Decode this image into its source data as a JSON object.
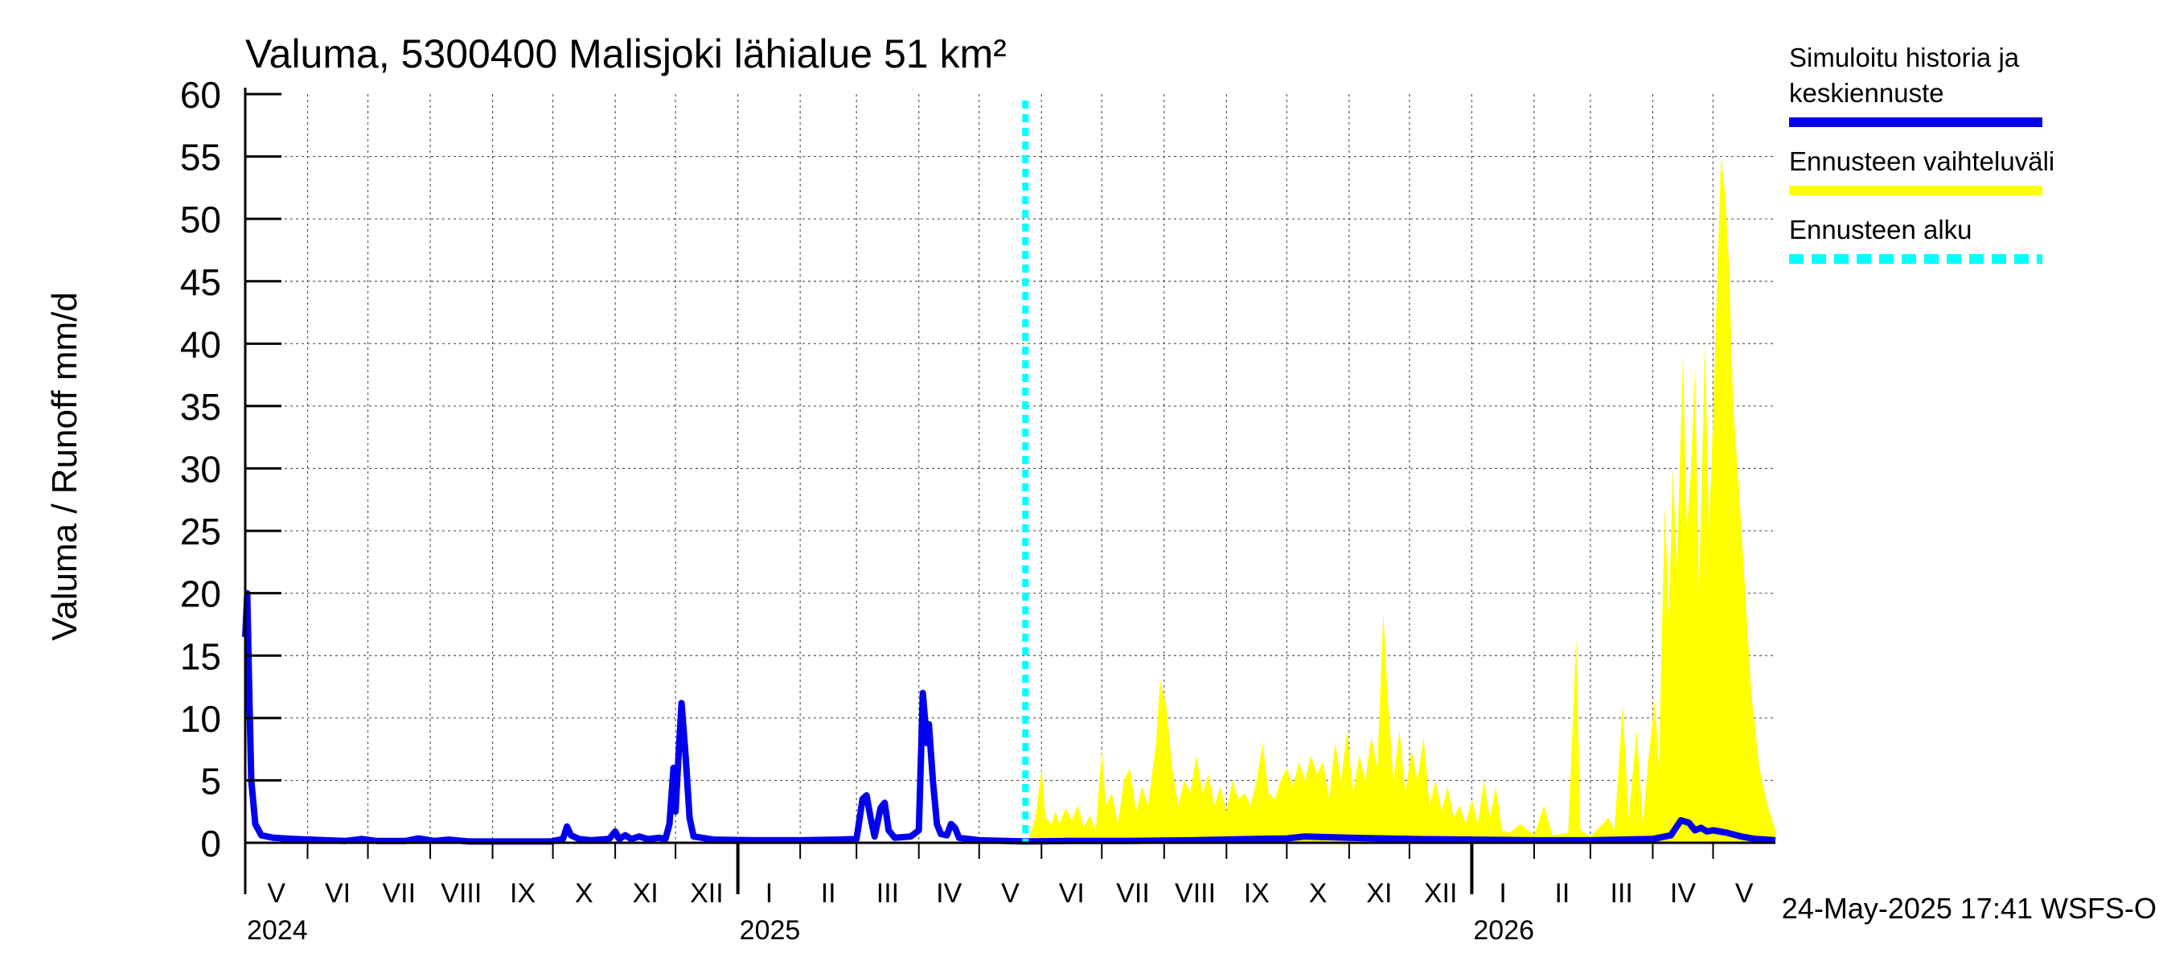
{
  "chart_data": {
    "type": "area",
    "title": "Valuma, 5300400 Malisjoki lähialue 51 km²",
    "ylabel": "Valuma / Runoff    mm/d",
    "ylim": [
      0,
      60
    ],
    "yticks": [
      0,
      5,
      10,
      15,
      20,
      25,
      30,
      35,
      40,
      45,
      50,
      55,
      60
    ],
    "xlim": [
      "2024-05-01",
      "2026-06-01"
    ],
    "grid": true,
    "month_labels": [
      {
        "label": "V",
        "start": "2024-05-01",
        "end": "2024-06-01"
      },
      {
        "label": "VI",
        "start": "2024-06-01",
        "end": "2024-07-01"
      },
      {
        "label": "VII",
        "start": "2024-07-01",
        "end": "2024-08-01"
      },
      {
        "label": "VIII",
        "start": "2024-08-01",
        "end": "2024-09-01"
      },
      {
        "label": "IX",
        "start": "2024-09-01",
        "end": "2024-10-01"
      },
      {
        "label": "X",
        "start": "2024-10-01",
        "end": "2024-11-01"
      },
      {
        "label": "XI",
        "start": "2024-11-01",
        "end": "2024-12-01"
      },
      {
        "label": "XII",
        "start": "2024-12-01",
        "end": "2025-01-01"
      },
      {
        "label": "I",
        "start": "2025-01-01",
        "end": "2025-02-01"
      },
      {
        "label": "II",
        "start": "2025-02-01",
        "end": "2025-03-01"
      },
      {
        "label": "III",
        "start": "2025-03-01",
        "end": "2025-04-01"
      },
      {
        "label": "IV",
        "start": "2025-04-01",
        "end": "2025-05-01"
      },
      {
        "label": "V",
        "start": "2025-05-01",
        "end": "2025-06-01"
      },
      {
        "label": "VI",
        "start": "2025-06-01",
        "end": "2025-07-01"
      },
      {
        "label": "VII",
        "start": "2025-07-01",
        "end": "2025-08-01"
      },
      {
        "label": "VIII",
        "start": "2025-08-01",
        "end": "2025-09-01"
      },
      {
        "label": "IX",
        "start": "2025-09-01",
        "end": "2025-10-01"
      },
      {
        "label": "X",
        "start": "2025-10-01",
        "end": "2025-11-01"
      },
      {
        "label": "XI",
        "start": "2025-11-01",
        "end": "2025-12-01"
      },
      {
        "label": "XII",
        "start": "2025-12-01",
        "end": "2026-01-01"
      },
      {
        "label": "I",
        "start": "2026-01-01",
        "end": "2026-02-01"
      },
      {
        "label": "II",
        "start": "2026-02-01",
        "end": "2026-03-01"
      },
      {
        "label": "III",
        "start": "2026-03-01",
        "end": "2026-04-01"
      },
      {
        "label": "IV",
        "start": "2026-04-01",
        "end": "2026-05-01"
      },
      {
        "label": "V",
        "start": "2026-05-01",
        "end": "2026-06-01"
      }
    ],
    "year_labels": [
      {
        "label": "2024",
        "date": "2024-05-01"
      },
      {
        "label": "2025",
        "date": "2025-01-01"
      },
      {
        "label": "2026",
        "date": "2026-01-01"
      }
    ],
    "forecast_start": "2025-05-24",
    "series": [
      {
        "name": "Simuloitu historia ja keskiennuste",
        "color": "#0000ee",
        "points": [
          [
            "2024-05-01",
            16.5
          ],
          [
            "2024-05-02",
            20.0
          ],
          [
            "2024-05-03",
            12.0
          ],
          [
            "2024-05-04",
            5.0
          ],
          [
            "2024-05-06",
            1.5
          ],
          [
            "2024-05-09",
            0.6
          ],
          [
            "2024-05-15",
            0.4
          ],
          [
            "2024-05-25",
            0.3
          ],
          [
            "2024-06-10",
            0.2
          ],
          [
            "2024-06-20",
            0.15
          ],
          [
            "2024-06-28",
            0.3
          ],
          [
            "2024-07-05",
            0.15
          ],
          [
            "2024-07-20",
            0.15
          ],
          [
            "2024-07-26",
            0.35
          ],
          [
            "2024-08-03",
            0.15
          ],
          [
            "2024-08-10",
            0.25
          ],
          [
            "2024-08-20",
            0.1
          ],
          [
            "2024-09-15",
            0.1
          ],
          [
            "2024-09-30",
            0.1
          ],
          [
            "2024-10-06",
            0.3
          ],
          [
            "2024-10-08",
            1.3
          ],
          [
            "2024-10-10",
            0.6
          ],
          [
            "2024-10-14",
            0.3
          ],
          [
            "2024-10-20",
            0.2
          ],
          [
            "2024-10-29",
            0.3
          ],
          [
            "2024-11-01",
            0.9
          ],
          [
            "2024-11-03",
            0.3
          ],
          [
            "2024-11-06",
            0.6
          ],
          [
            "2024-11-09",
            0.3
          ],
          [
            "2024-11-13",
            0.5
          ],
          [
            "2024-11-17",
            0.3
          ],
          [
            "2024-11-23",
            0.4
          ],
          [
            "2024-11-26",
            0.3
          ],
          [
            "2024-11-28",
            1.5
          ],
          [
            "2024-11-30",
            6.0
          ],
          [
            "2024-12-01",
            2.5
          ],
          [
            "2024-12-02",
            5.5
          ],
          [
            "2024-12-04",
            11.2
          ],
          [
            "2024-12-06",
            7.0
          ],
          [
            "2024-12-08",
            2.0
          ],
          [
            "2024-12-10",
            0.5
          ],
          [
            "2024-12-20",
            0.25
          ],
          [
            "2025-01-10",
            0.2
          ],
          [
            "2025-02-01",
            0.2
          ],
          [
            "2025-02-20",
            0.25
          ],
          [
            "2025-03-01",
            0.3
          ],
          [
            "2025-03-04",
            3.5
          ],
          [
            "2025-03-06",
            3.8
          ],
          [
            "2025-03-08",
            2.0
          ],
          [
            "2025-03-10",
            0.5
          ],
          [
            "2025-03-13",
            2.8
          ],
          [
            "2025-03-15",
            3.2
          ],
          [
            "2025-03-17",
            1.0
          ],
          [
            "2025-03-20",
            0.4
          ],
          [
            "2025-03-28",
            0.5
          ],
          [
            "2025-04-01",
            1.0
          ],
          [
            "2025-04-03",
            12.0
          ],
          [
            "2025-04-05",
            8.0
          ],
          [
            "2025-04-06",
            9.5
          ],
          [
            "2025-04-08",
            5.0
          ],
          [
            "2025-04-10",
            1.5
          ],
          [
            "2025-04-12",
            0.7
          ],
          [
            "2025-04-15",
            0.6
          ],
          [
            "2025-04-17",
            1.5
          ],
          [
            "2025-04-19",
            1.2
          ],
          [
            "2025-04-21",
            0.4
          ],
          [
            "2025-05-01",
            0.2
          ],
          [
            "2025-05-24",
            0.1
          ],
          [
            "2025-06-15",
            0.15
          ],
          [
            "2025-07-15",
            0.15
          ],
          [
            "2025-08-15",
            0.2
          ],
          [
            "2025-09-15",
            0.3
          ],
          [
            "2025-10-01",
            0.35
          ],
          [
            "2025-10-10",
            0.5
          ],
          [
            "2025-11-01",
            0.4
          ],
          [
            "2025-12-01",
            0.3
          ],
          [
            "2026-01-01",
            0.25
          ],
          [
            "2026-02-01",
            0.2
          ],
          [
            "2026-03-01",
            0.2
          ],
          [
            "2026-04-01",
            0.3
          ],
          [
            "2026-04-10",
            0.6
          ],
          [
            "2026-04-15",
            1.8
          ],
          [
            "2026-04-19",
            1.6
          ],
          [
            "2026-04-22",
            1.0
          ],
          [
            "2026-04-25",
            1.2
          ],
          [
            "2026-04-28",
            0.9
          ],
          [
            "2026-05-01",
            1.0
          ],
          [
            "2026-05-08",
            0.8
          ],
          [
            "2026-05-15",
            0.5
          ],
          [
            "2026-05-22",
            0.3
          ],
          [
            "2026-06-01",
            0.2
          ]
        ]
      },
      {
        "name": "Ennusteen vaihteluväli",
        "color": "#ffff00",
        "points": [
          [
            "2025-05-24",
            0.0
          ],
          [
            "2025-05-26",
            0.5
          ],
          [
            "2025-05-29",
            2.0
          ],
          [
            "2025-06-01",
            6.0
          ],
          [
            "2025-06-03",
            2.0
          ],
          [
            "2025-06-06",
            1.5
          ],
          [
            "2025-06-08",
            2.5
          ],
          [
            "2025-06-10",
            1.5
          ],
          [
            "2025-06-13",
            2.8
          ],
          [
            "2025-06-16",
            1.8
          ],
          [
            "2025-06-19",
            3.0
          ],
          [
            "2025-06-22",
            1.2
          ],
          [
            "2025-06-25",
            2.2
          ],
          [
            "2025-06-28",
            1.0
          ],
          [
            "2025-07-01",
            7.5
          ],
          [
            "2025-07-03",
            3.0
          ],
          [
            "2025-07-06",
            4.0
          ],
          [
            "2025-07-09",
            1.5
          ],
          [
            "2025-07-12",
            5.0
          ],
          [
            "2025-07-15",
            6.0
          ],
          [
            "2025-07-18",
            2.5
          ],
          [
            "2025-07-21",
            4.5
          ],
          [
            "2025-07-24",
            3.0
          ],
          [
            "2025-07-28",
            8.0
          ],
          [
            "2025-07-30",
            13.0
          ],
          [
            "2025-08-02",
            11.0
          ],
          [
            "2025-08-05",
            6.0
          ],
          [
            "2025-08-08",
            3.0
          ],
          [
            "2025-08-11",
            5.0
          ],
          [
            "2025-08-14",
            4.0
          ],
          [
            "2025-08-17",
            7.0
          ],
          [
            "2025-08-20",
            4.0
          ],
          [
            "2025-08-23",
            5.5
          ],
          [
            "2025-08-26",
            3.0
          ],
          [
            "2025-08-29",
            4.5
          ],
          [
            "2025-09-01",
            2.5
          ],
          [
            "2025-09-04",
            5.0
          ],
          [
            "2025-09-07",
            3.5
          ],
          [
            "2025-09-10",
            4.0
          ],
          [
            "2025-09-13",
            3.0
          ],
          [
            "2025-09-16",
            5.0
          ],
          [
            "2025-09-19",
            8.0
          ],
          [
            "2025-09-22",
            4.0
          ],
          [
            "2025-09-25",
            3.5
          ],
          [
            "2025-09-28",
            5.0
          ],
          [
            "2025-10-01",
            6.0
          ],
          [
            "2025-10-04",
            4.5
          ],
          [
            "2025-10-07",
            6.5
          ],
          [
            "2025-10-10",
            5.0
          ],
          [
            "2025-10-13",
            7.0
          ],
          [
            "2025-10-16",
            5.5
          ],
          [
            "2025-10-19",
            6.5
          ],
          [
            "2025-10-22",
            3.5
          ],
          [
            "2025-10-25",
            8.0
          ],
          [
            "2025-10-28",
            5.0
          ],
          [
            "2025-10-31",
            9.0
          ],
          [
            "2025-11-03",
            4.0
          ],
          [
            "2025-11-06",
            7.0
          ],
          [
            "2025-11-09",
            5.0
          ],
          [
            "2025-11-12",
            8.5
          ],
          [
            "2025-11-15",
            6.0
          ],
          [
            "2025-11-18",
            18.5
          ],
          [
            "2025-11-20",
            12.0
          ],
          [
            "2025-11-23",
            5.0
          ],
          [
            "2025-11-26",
            9.0
          ],
          [
            "2025-11-29",
            4.0
          ],
          [
            "2025-12-02",
            7.5
          ],
          [
            "2025-12-05",
            5.0
          ],
          [
            "2025-12-08",
            8.5
          ],
          [
            "2025-12-11",
            3.0
          ],
          [
            "2025-12-14",
            5.0
          ],
          [
            "2025-12-17",
            2.5
          ],
          [
            "2025-12-20",
            4.5
          ],
          [
            "2025-12-23",
            2.0
          ],
          [
            "2025-12-26",
            3.0
          ],
          [
            "2025-12-29",
            1.5
          ],
          [
            "2026-01-01",
            3.5
          ],
          [
            "2026-01-04",
            1.5
          ],
          [
            "2026-01-07",
            5.0
          ],
          [
            "2026-01-10",
            2.0
          ],
          [
            "2026-01-13",
            4.5
          ],
          [
            "2026-01-16",
            1.0
          ],
          [
            "2026-01-20",
            0.8
          ],
          [
            "2026-01-25",
            1.5
          ],
          [
            "2026-02-01",
            0.6
          ],
          [
            "2026-02-06",
            3.0
          ],
          [
            "2026-02-10",
            0.6
          ],
          [
            "2026-02-18",
            0.8
          ],
          [
            "2026-02-22",
            16.5
          ],
          [
            "2026-02-24",
            1.0
          ],
          [
            "2026-03-01",
            0.5
          ],
          [
            "2026-03-10",
            2.0
          ],
          [
            "2026-03-13",
            1.0
          ],
          [
            "2026-03-17",
            11.0
          ],
          [
            "2026-03-20",
            2.0
          ],
          [
            "2026-03-24",
            9.0
          ],
          [
            "2026-03-27",
            1.5
          ],
          [
            "2026-03-30",
            7.0
          ],
          [
            "2026-04-02",
            11.5
          ],
          [
            "2026-04-04",
            6.0
          ],
          [
            "2026-04-07",
            27.0
          ],
          [
            "2026-04-09",
            18.0
          ],
          [
            "2026-04-11",
            30.0
          ],
          [
            "2026-04-13",
            22.0
          ],
          [
            "2026-04-16",
            39.0
          ],
          [
            "2026-04-18",
            25.0
          ],
          [
            "2026-04-20",
            30.0
          ],
          [
            "2026-04-22",
            38.0
          ],
          [
            "2026-04-24",
            20.0
          ],
          [
            "2026-04-27",
            40.0
          ],
          [
            "2026-04-29",
            25.0
          ],
          [
            "2026-05-01",
            34.0
          ],
          [
            "2026-05-03",
            45.0
          ],
          [
            "2026-05-05",
            55.0
          ],
          [
            "2026-05-07",
            52.0
          ],
          [
            "2026-05-09",
            46.0
          ],
          [
            "2026-05-11",
            35.0
          ],
          [
            "2026-05-14",
            28.0
          ],
          [
            "2026-05-17",
            20.0
          ],
          [
            "2026-05-20",
            12.0
          ],
          [
            "2026-05-24",
            6.0
          ],
          [
            "2026-05-28",
            3.0
          ],
          [
            "2026-06-01",
            1.0
          ]
        ]
      }
    ],
    "legend": {
      "placement": "right",
      "items": [
        {
          "label_lines": [
            "Simuloitu historia ja",
            "keskiennuste"
          ],
          "color": "#0000ee",
          "style": "solid"
        },
        {
          "label_lines": [
            "Ennusteen vaihteluväli"
          ],
          "color": "#ffff00",
          "style": "solid"
        },
        {
          "label_lines": [
            "Ennusteen alku"
          ],
          "color": "#00ffff",
          "style": "dashed"
        }
      ]
    },
    "footer": "24-May-2025 17:41 WSFS-O"
  }
}
